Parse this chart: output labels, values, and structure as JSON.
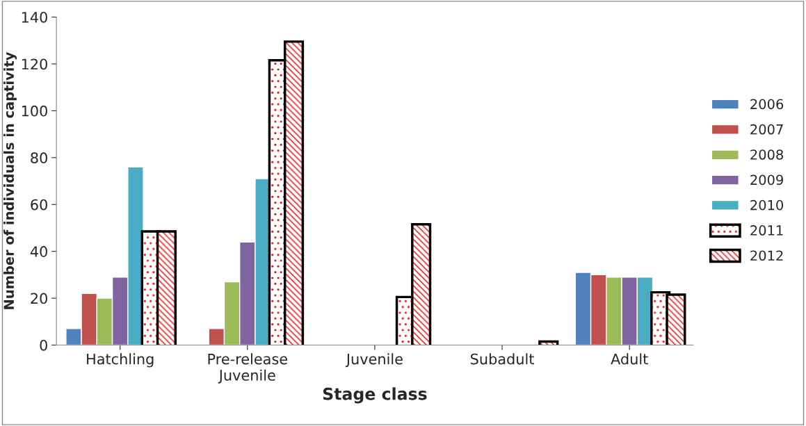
{
  "chart_data": {
    "type": "bar",
    "xlabel": "Stage class",
    "ylabel": "Number of individuals in captivity",
    "categories": [
      "Hatchling",
      "Pre-release\nJuvenile",
      "Juvenile",
      "Subadult",
      "Adult"
    ],
    "series": [
      {
        "name": "2006",
        "color": "#4f81bd",
        "values": [
          7,
          null,
          null,
          null,
          31
        ]
      },
      {
        "name": "2007",
        "color": "#c0504d",
        "values": [
          22,
          7,
          null,
          null,
          30
        ]
      },
      {
        "name": "2008",
        "color": "#9bbb59",
        "values": [
          20,
          27,
          null,
          null,
          29
        ]
      },
      {
        "name": "2009",
        "color": "#8064a2",
        "values": [
          29,
          44,
          null,
          null,
          29
        ]
      },
      {
        "name": "2010",
        "color": "#4bacc6",
        "values": [
          76,
          71,
          null,
          null,
          29
        ]
      },
      {
        "name": "2011",
        "color": "#ffffff",
        "values": [
          48,
          121,
          20,
          null,
          22
        ]
      },
      {
        "name": "2012",
        "color": "#ffffff",
        "values": [
          48,
          129,
          51,
          1,
          21
        ]
      }
    ],
    "ylim": [
      0,
      140
    ],
    "yticks": [
      0,
      20,
      40,
      60,
      80,
      100,
      120,
      140
    ],
    "grid": false,
    "legend": "right"
  }
}
